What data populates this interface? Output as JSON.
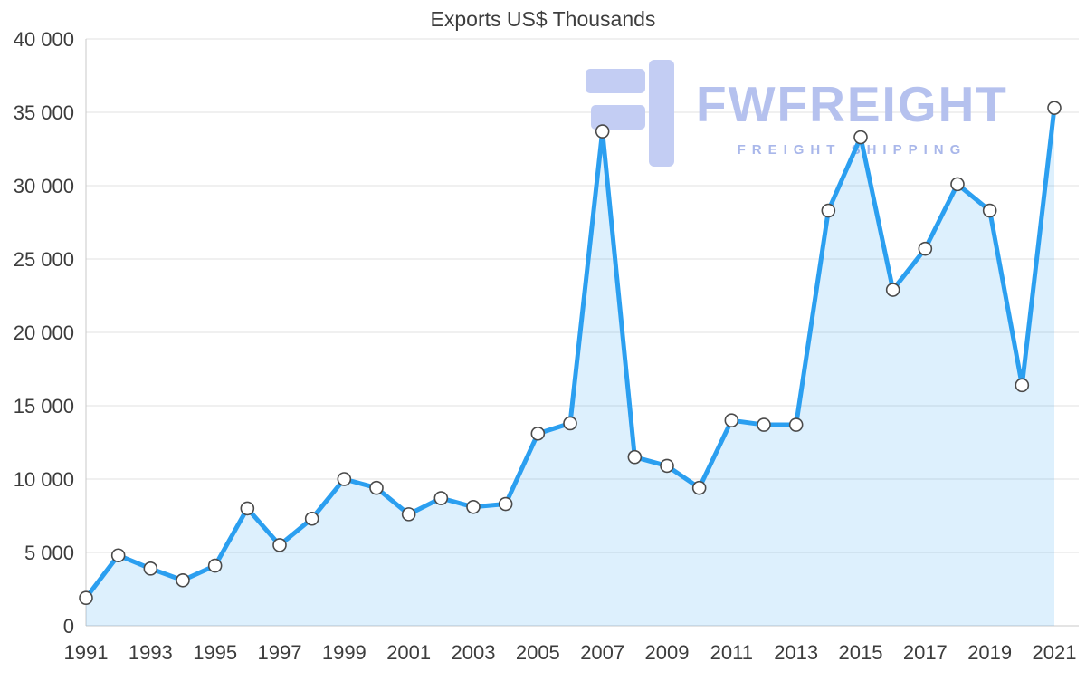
{
  "chart_data": {
    "type": "area",
    "title": "Exports US$ Thousands",
    "xlabel": "",
    "ylabel": "",
    "x": [
      1991,
      1992,
      1993,
      1994,
      1995,
      1996,
      1997,
      1998,
      1999,
      2000,
      2001,
      2002,
      2003,
      2004,
      2005,
      2006,
      2007,
      2008,
      2009,
      2010,
      2011,
      2012,
      2013,
      2014,
      2015,
      2016,
      2017,
      2018,
      2019,
      2020,
      2021
    ],
    "series": [
      {
        "name": "Exports",
        "values": [
          1900,
          4800,
          3900,
          3100,
          4100,
          8000,
          5500,
          7300,
          10000,
          9400,
          7600,
          8700,
          8100,
          8300,
          13100,
          13800,
          33700,
          11500,
          10900,
          9400,
          14000,
          13700,
          13700,
          28300,
          33300,
          22900,
          25700,
          30100,
          28300,
          16400,
          35300
        ]
      }
    ],
    "ylim": [
      0,
      40000
    ],
    "y_ticks": [
      {
        "value": 0,
        "label": "0"
      },
      {
        "value": 5000,
        "label": "5 000"
      },
      {
        "value": 10000,
        "label": "10 000"
      },
      {
        "value": 15000,
        "label": "15 000"
      },
      {
        "value": 20000,
        "label": "20 000"
      },
      {
        "value": 25000,
        "label": "25 000"
      },
      {
        "value": 30000,
        "label": "30 000"
      },
      {
        "value": 35000,
        "label": "35 000"
      },
      {
        "value": 40000,
        "label": "40 000"
      }
    ],
    "x_tick_labels": [
      "1991",
      "1993",
      "1995",
      "1997",
      "1999",
      "2001",
      "2003",
      "2005",
      "2007",
      "2009",
      "2011",
      "2013",
      "2015",
      "2017",
      "2019",
      "2021"
    ],
    "grid": "horizontal",
    "legend": "none"
  },
  "watermark": {
    "title": "FWFREIGHT",
    "subtitle": "FREIGHT SHIPPING"
  },
  "colors": {
    "line": "#2b9ff0",
    "area_fill": "#2b9ff0",
    "marker_fill": "#ffffff",
    "marker_stroke": "#4a4a4a",
    "grid": "#e1e1e1",
    "axis_line": "#c8c8c8",
    "axis_text": "#3c3c3c",
    "title_text": "#3d3d3d",
    "watermark": "#c3cdf3"
  }
}
